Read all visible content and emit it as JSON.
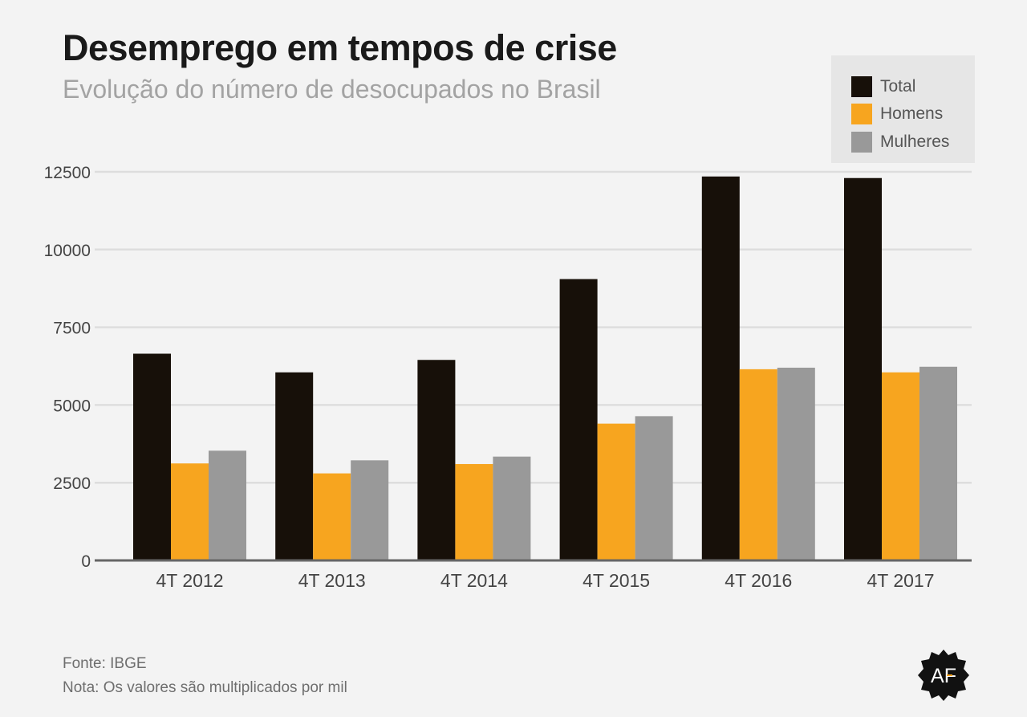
{
  "header": {
    "title": "Desemprego em tempos de crise",
    "subtitle": "Evolução do número de desocupados no Brasil"
  },
  "legend": [
    {
      "label": "Total",
      "color": "#171009"
    },
    {
      "label": "Homens",
      "color": "#f7a51f"
    },
    {
      "label": "Mulheres",
      "color": "#999999"
    }
  ],
  "chart_data": {
    "type": "bar",
    "title": "Desemprego em tempos de crise",
    "subtitle": "Evolução do número de desocupados no Brasil",
    "xlabel": "",
    "ylabel": "",
    "categories": [
      "4T 2012",
      "4T 2013",
      "4T 2014",
      "4T 2015",
      "4T 2016",
      "4T 2017"
    ],
    "series": [
      {
        "name": "Total",
        "color": "#171009",
        "values": [
          6650,
          6050,
          6450,
          9050,
          12350,
          12300
        ]
      },
      {
        "name": "Homens",
        "color": "#f7a51f",
        "values": [
          3120,
          2800,
          3100,
          4400,
          6150,
          6050
        ]
      },
      {
        "name": "Mulheres",
        "color": "#999999",
        "values": [
          3530,
          3220,
          3340,
          4640,
          6200,
          6230
        ]
      }
    ],
    "ylim": [
      0,
      12500
    ],
    "yticks": [
      0,
      2500,
      5000,
      7500,
      10000,
      12500
    ],
    "grid": true,
    "legend_position": "top-right"
  },
  "footer": {
    "source": "Fonte: IBGE",
    "note": "Nota: Os valores são multiplicados por mil"
  },
  "logo": {
    "text": "AF"
  }
}
